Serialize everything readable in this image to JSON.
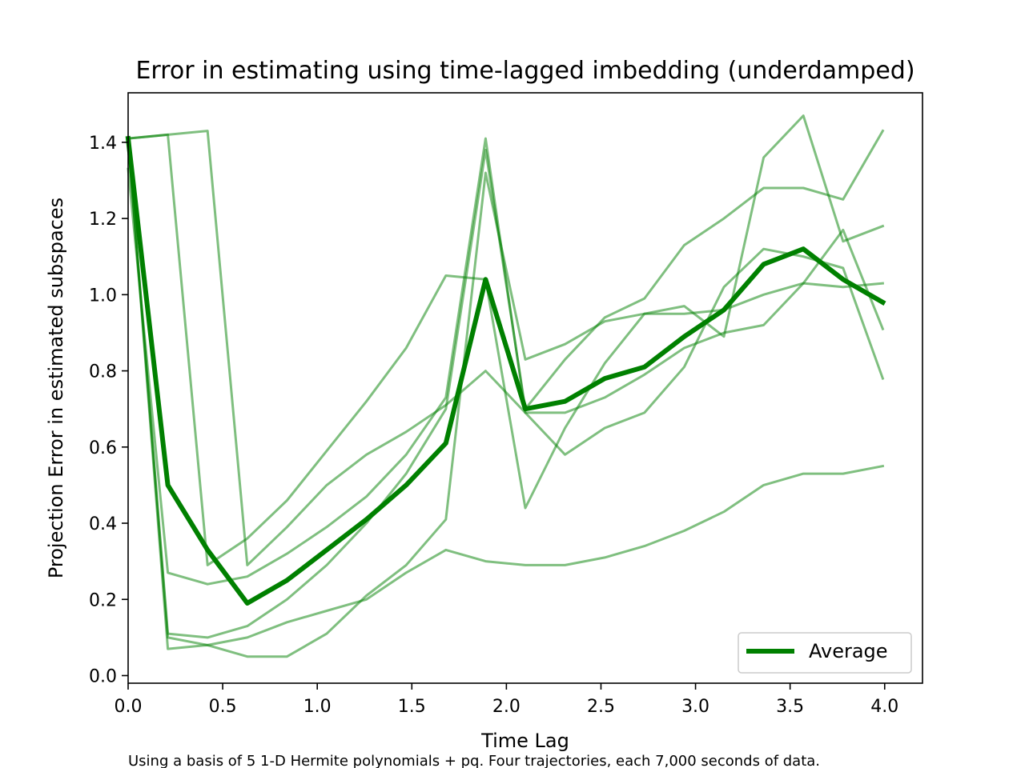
{
  "chart_data": {
    "type": "line",
    "title": "Error in estimating using time-lagged imbedding (underdamped)",
    "xlabel": "Time Lag",
    "ylabel": "Projection Error in estimated subspaces",
    "caption": "Using a basis of 5 1-D Hermite polynomials + pq. Four trajectories, each 7,000 seconds of data.",
    "xlim": [
      0.0,
      4.2
    ],
    "ylim": [
      -0.02,
      1.53
    ],
    "xticks": [
      0.0,
      0.5,
      1.0,
      1.5,
      2.0,
      2.5,
      3.0,
      3.5,
      4.0
    ],
    "xtick_labels": [
      "0.0",
      "0.5",
      "1.0",
      "1.5",
      "2.0",
      "2.5",
      "3.0",
      "3.5",
      "4.0"
    ],
    "yticks": [
      0.0,
      0.2,
      0.4,
      0.6,
      0.8,
      1.0,
      1.2,
      1.4
    ],
    "ytick_labels": [
      "0.0",
      "0.2",
      "0.4",
      "0.6",
      "0.8",
      "1.0",
      "1.2",
      "1.4"
    ],
    "grid": false,
    "legend_position": "bottom-right",
    "colors": {
      "series": "#008000",
      "axes": "#000000"
    },
    "x": [
      0.0,
      0.21,
      0.42,
      0.63,
      0.84,
      1.05,
      1.26,
      1.47,
      1.68,
      1.89,
      2.1,
      2.31,
      2.52,
      2.73,
      2.94,
      3.15,
      3.36,
      3.57,
      3.78,
      3.99
    ],
    "series": [
      {
        "values": [
          1.41,
          0.11,
          0.1,
          0.13,
          0.2,
          0.29,
          0.4,
          0.53,
          0.7,
          1.38,
          0.7,
          0.83,
          0.94,
          0.99,
          1.13,
          1.2,
          1.28,
          1.28,
          1.25,
          1.43
        ],
        "average": false
      },
      {
        "values": [
          1.41,
          1.42,
          0.29,
          0.36,
          0.46,
          0.59,
          0.72,
          0.86,
          1.05,
          1.04,
          0.44,
          0.65,
          0.82,
          0.95,
          0.97,
          0.89,
          1.36,
          1.47,
          1.14,
          1.18
        ],
        "average": false
      },
      {
        "values": [
          1.33,
          0.27,
          0.24,
          0.26,
          0.32,
          0.39,
          0.47,
          0.58,
          0.73,
          1.41,
          0.69,
          0.69,
          0.73,
          0.79,
          0.86,
          0.9,
          0.92,
          1.03,
          1.17,
          0.91
        ],
        "average": false
      },
      {
        "values": [
          1.41,
          0.07,
          0.08,
          0.1,
          0.14,
          0.17,
          0.2,
          0.27,
          0.33,
          0.3,
          0.29,
          0.29,
          0.31,
          0.34,
          0.38,
          0.43,
          0.5,
          0.53,
          0.53,
          0.55
        ],
        "average": false
      },
      {
        "values": [
          1.41,
          1.42,
          1.43,
          0.29,
          0.39,
          0.5,
          0.58,
          0.64,
          0.71,
          0.8,
          0.69,
          0.58,
          0.65,
          0.69,
          0.81,
          1.02,
          1.12,
          1.1,
          1.07,
          0.78
        ],
        "average": false
      },
      {
        "values": [
          1.41,
          0.1,
          0.08,
          0.05,
          0.05,
          0.11,
          0.21,
          0.29,
          0.41,
          1.32,
          0.83,
          0.87,
          0.93,
          0.95,
          0.95,
          0.96,
          1.0,
          1.03,
          1.02,
          1.03
        ],
        "average": false
      },
      {
        "name": "Average",
        "values": [
          1.41,
          0.5,
          0.33,
          0.19,
          0.25,
          0.33,
          0.41,
          0.5,
          0.61,
          1.04,
          0.7,
          0.72,
          0.78,
          0.81,
          0.89,
          0.96,
          1.08,
          1.12,
          1.04,
          0.98
        ],
        "average": true
      }
    ]
  }
}
